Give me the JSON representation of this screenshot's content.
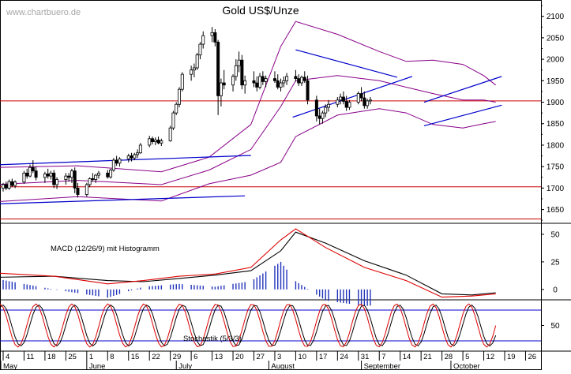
{
  "header": {
    "watermark": "www.chartbuero.de",
    "title": "Gold US$/Unze"
  },
  "chart_data": {
    "type": "candlestick",
    "x_dates": [
      "2020-05-01",
      "2020-10-16"
    ],
    "y_ticks": [
      1650,
      1700,
      1750,
      1800,
      1850,
      1900,
      1950,
      2000,
      2050,
      2100
    ],
    "ylim": [
      1618,
      2138
    ],
    "x_axis": {
      "day_labels": [
        "4",
        "11",
        "18",
        "25",
        "1",
        "8",
        "15",
        "22",
        "29",
        "6",
        "13",
        "20",
        "27",
        "3",
        "10",
        "17",
        "24",
        "31",
        "7",
        "14",
        "21",
        "28",
        "5",
        "12",
        "19",
        "26"
      ],
      "month_labels": [
        "May",
        "June",
        "July",
        "August",
        "September",
        "October"
      ]
    },
    "horizontal_lines": [
      1903,
      1703,
      1628
    ],
    "candles": [
      [
        1690,
        1705,
        1680,
        1700
      ],
      [
        1700,
        1712,
        1692,
        1708
      ],
      [
        1708,
        1715,
        1695,
        1700
      ],
      [
        1700,
        1720,
        1696,
        1715
      ],
      [
        1715,
        1722,
        1702,
        1706
      ],
      [
        1706,
        1718,
        1700,
        1714
      ],
      [
        1714,
        1740,
        1710,
        1735
      ],
      [
        1735,
        1745,
        1722,
        1728
      ],
      [
        1728,
        1755,
        1725,
        1748
      ],
      [
        1748,
        1765,
        1735,
        1740
      ],
      [
        1740,
        1750,
        1718,
        1725
      ],
      [
        1725,
        1738,
        1712,
        1733
      ],
      [
        1733,
        1745,
        1722,
        1728
      ],
      [
        1728,
        1740,
        1720,
        1735
      ],
      [
        1735,
        1742,
        1700,
        1708
      ],
      [
        1708,
        1725,
        1698,
        1720
      ],
      [
        1720,
        1735,
        1708,
        1728
      ],
      [
        1728,
        1735,
        1715,
        1725
      ],
      [
        1725,
        1745,
        1712,
        1740
      ],
      [
        1740,
        1748,
        1688,
        1700
      ],
      [
        1700,
        1712,
        1678,
        1685
      ],
      [
        1685,
        1712,
        1680,
        1708
      ],
      [
        1708,
        1725,
        1702,
        1722
      ],
      [
        1722,
        1735,
        1715,
        1720
      ],
      [
        1720,
        1733,
        1712,
        1730
      ],
      [
        1730,
        1740,
        1722,
        1735
      ],
      [
        1735,
        1742,
        1722,
        1726
      ],
      [
        1726,
        1745,
        1722,
        1742
      ],
      [
        1742,
        1770,
        1738,
        1765
      ],
      [
        1765,
        1775,
        1752,
        1758
      ],
      [
        1758,
        1772,
        1750,
        1768
      ],
      [
        1768,
        1780,
        1760,
        1775
      ],
      [
        1775,
        1782,
        1762,
        1770
      ],
      [
        1770,
        1782,
        1765,
        1778
      ],
      [
        1778,
        1790,
        1770,
        1782
      ],
      [
        1782,
        1805,
        1780,
        1800
      ],
      [
        1800,
        1822,
        1795,
        1815
      ],
      [
        1815,
        1820,
        1802,
        1808
      ],
      [
        1808,
        1818,
        1800,
        1812
      ],
      [
        1812,
        1820,
        1802,
        1805
      ],
      [
        1805,
        1815,
        1798,
        1810
      ],
      [
        1810,
        1845,
        1808,
        1840
      ],
      [
        1840,
        1880,
        1835,
        1875
      ],
      [
        1875,
        1900,
        1870,
        1895
      ],
      [
        1895,
        1935,
        1888,
        1930
      ],
      [
        1930,
        1970,
        1925,
        1965
      ],
      [
        1965,
        1985,
        1950,
        1975
      ],
      [
        1975,
        1990,
        1958,
        1980
      ],
      [
        1980,
        2015,
        1975,
        2010
      ],
      [
        2010,
        2040,
        2000,
        2035
      ],
      [
        2035,
        2065,
        2025,
        2055
      ],
      [
        2055,
        2075,
        2040,
        2062
      ],
      [
        2062,
        2070,
        2030,
        2040
      ],
      [
        2040,
        2045,
        1870,
        1915
      ],
      [
        1915,
        1955,
        1890,
        1945
      ],
      [
        1945,
        1975,
        1930,
        1940
      ],
      [
        1940,
        1965,
        1925,
        1960
      ],
      [
        1960,
        2000,
        1950,
        1985
      ],
      [
        1985,
        2018,
        1970,
        1998
      ],
      [
        1998,
        2010,
        1930,
        1940
      ],
      [
        1940,
        1962,
        1920,
        1950
      ],
      [
        1950,
        1972,
        1935,
        1945
      ],
      [
        1945,
        1960,
        1925,
        1935
      ],
      [
        1935,
        1968,
        1930,
        1960
      ],
      [
        1960,
        1972,
        1940,
        1948
      ],
      [
        1948,
        1962,
        1935,
        1955
      ],
      [
        1955,
        1972,
        1945,
        1950
      ],
      [
        1950,
        1965,
        1930,
        1935
      ],
      [
        1935,
        1955,
        1925,
        1945
      ],
      [
        1945,
        1960,
        1935,
        1950
      ],
      [
        1950,
        1968,
        1940,
        1960
      ],
      [
        1960,
        1975,
        1948,
        1955
      ],
      [
        1955,
        1965,
        1938,
        1945
      ],
      [
        1945,
        1962,
        1938,
        1958
      ],
      [
        1958,
        1972,
        1945,
        1950
      ],
      [
        1950,
        1962,
        1895,
        1905
      ],
      [
        1905,
        1915,
        1855,
        1868
      ],
      [
        1868,
        1885,
        1848,
        1862
      ],
      [
        1862,
        1880,
        1850,
        1875
      ],
      [
        1875,
        1895,
        1865,
        1888
      ],
      [
        1888,
        1905,
        1878,
        1895
      ],
      [
        1895,
        1912,
        1888,
        1905
      ],
      [
        1905,
        1920,
        1895,
        1912
      ],
      [
        1912,
        1925,
        1895,
        1902
      ],
      [
        1902,
        1915,
        1880,
        1888
      ],
      [
        1888,
        1905,
        1882,
        1900
      ],
      [
        1900,
        1925,
        1895,
        1920
      ],
      [
        1920,
        1935,
        1902,
        1910
      ],
      [
        1910,
        1925,
        1885,
        1892
      ],
      [
        1892,
        1908,
        1885,
        1903
      ],
      [
        1903,
        1912,
        1895,
        1905
      ]
    ],
    "trendlines": [
      {
        "from": [
          "2020-05-01",
          1754
        ],
        "to": [
          "2020-07-26",
          1776
        ]
      },
      {
        "from": [
          "2020-05-01",
          1663
        ],
        "to": [
          "2020-07-24",
          1682
        ]
      },
      {
        "from": [
          "2020-08-09",
          1865
        ],
        "to": [
          "2020-09-18",
          1960
        ]
      },
      {
        "from": [
          "2020-08-10",
          2022
        ],
        "to": [
          "2020-09-13",
          1958
        ]
      },
      {
        "from": [
          "2020-09-22",
          1845
        ],
        "to": [
          "2020-10-18",
          1893
        ]
      },
      {
        "from": [
          "2020-09-22",
          1900
        ],
        "to": [
          "2020-10-18",
          1960
        ]
      }
    ],
    "bollinger_upper": [
      [
        "2020-05-01",
        1748
      ],
      [
        "2020-05-29",
        1752
      ],
      [
        "2020-06-26",
        1738
      ],
      [
        "2020-07-12",
        1772
      ],
      [
        "2020-07-26",
        1848
      ],
      [
        "2020-08-05",
        2030
      ],
      [
        "2020-08-10",
        2088
      ],
      [
        "2020-08-24",
        2058
      ],
      [
        "2020-09-07",
        2018
      ],
      [
        "2020-09-16",
        1995
      ],
      [
        "2020-09-25",
        1998
      ],
      [
        "2020-10-05",
        1988
      ],
      [
        "2020-10-12",
        1962
      ],
      [
        "2020-10-16",
        1940
      ]
    ],
    "bollinger_lower": [
      [
        "2020-05-01",
        1668
      ],
      [
        "2020-05-29",
        1680
      ],
      [
        "2020-06-26",
        1670
      ],
      [
        "2020-07-12",
        1710
      ],
      [
        "2020-07-26",
        1730
      ],
      [
        "2020-08-05",
        1760
      ],
      [
        "2020-08-10",
        1820
      ],
      [
        "2020-08-24",
        1870
      ],
      [
        "2020-09-07",
        1885
      ],
      [
        "2020-09-16",
        1875
      ],
      [
        "2020-09-25",
        1848
      ],
      [
        "2020-10-05",
        1840
      ],
      [
        "2020-10-12",
        1850
      ],
      [
        "2020-10-16",
        1855
      ]
    ],
    "bollinger_middle": [
      [
        "2020-05-01",
        1708
      ],
      [
        "2020-05-29",
        1718
      ],
      [
        "2020-06-26",
        1708
      ],
      [
        "2020-07-12",
        1742
      ],
      [
        "2020-07-26",
        1790
      ],
      [
        "2020-08-05",
        1890
      ],
      [
        "2020-08-10",
        1950
      ],
      [
        "2020-08-24",
        1962
      ],
      [
        "2020-09-07",
        1950
      ],
      [
        "2020-09-16",
        1935
      ],
      [
        "2020-09-25",
        1920
      ],
      [
        "2020-10-05",
        1905
      ],
      [
        "2020-10-12",
        1905
      ],
      [
        "2020-10-16",
        1900
      ]
    ],
    "macd": {
      "label": "MACD (12/26/9) mit Histogramm",
      "y_ticks": [
        0,
        25,
        50
      ],
      "ylim": [
        -8,
        60
      ],
      "macd_line": [
        [
          "2020-05-01",
          15
        ],
        [
          "2020-05-21",
          12
        ],
        [
          "2020-06-08",
          5
        ],
        [
          "2020-06-20",
          8
        ],
        [
          "2020-07-02",
          12
        ],
        [
          "2020-07-14",
          14
        ],
        [
          "2020-07-26",
          20
        ],
        [
          "2020-08-05",
          45
        ],
        [
          "2020-08-10",
          55
        ],
        [
          "2020-08-20",
          38
        ],
        [
          "2020-09-02",
          20
        ],
        [
          "2020-09-16",
          8
        ],
        [
          "2020-09-28",
          -7
        ],
        [
          "2020-10-08",
          -6
        ],
        [
          "2020-10-16",
          -4
        ]
      ],
      "signal_line": [
        [
          "2020-05-01",
          11
        ],
        [
          "2020-05-21",
          12
        ],
        [
          "2020-06-08",
          8
        ],
        [
          "2020-06-20",
          7
        ],
        [
          "2020-07-02",
          10
        ],
        [
          "2020-07-14",
          13
        ],
        [
          "2020-07-26",
          17
        ],
        [
          "2020-08-05",
          35
        ],
        [
          "2020-08-10",
          52
        ],
        [
          "2020-08-20",
          42
        ],
        [
          "2020-09-02",
          26
        ],
        [
          "2020-09-16",
          13
        ],
        [
          "2020-09-28",
          -4
        ],
        [
          "2020-10-08",
          -5
        ],
        [
          "2020-10-16",
          -3
        ]
      ]
    },
    "stochastic": {
      "label": "Stochastik (5/3/3)",
      "y_ticks": [
        50
      ],
      "ylim": [
        0,
        100
      ],
      "band": [
        80,
        20
      ]
    }
  }
}
